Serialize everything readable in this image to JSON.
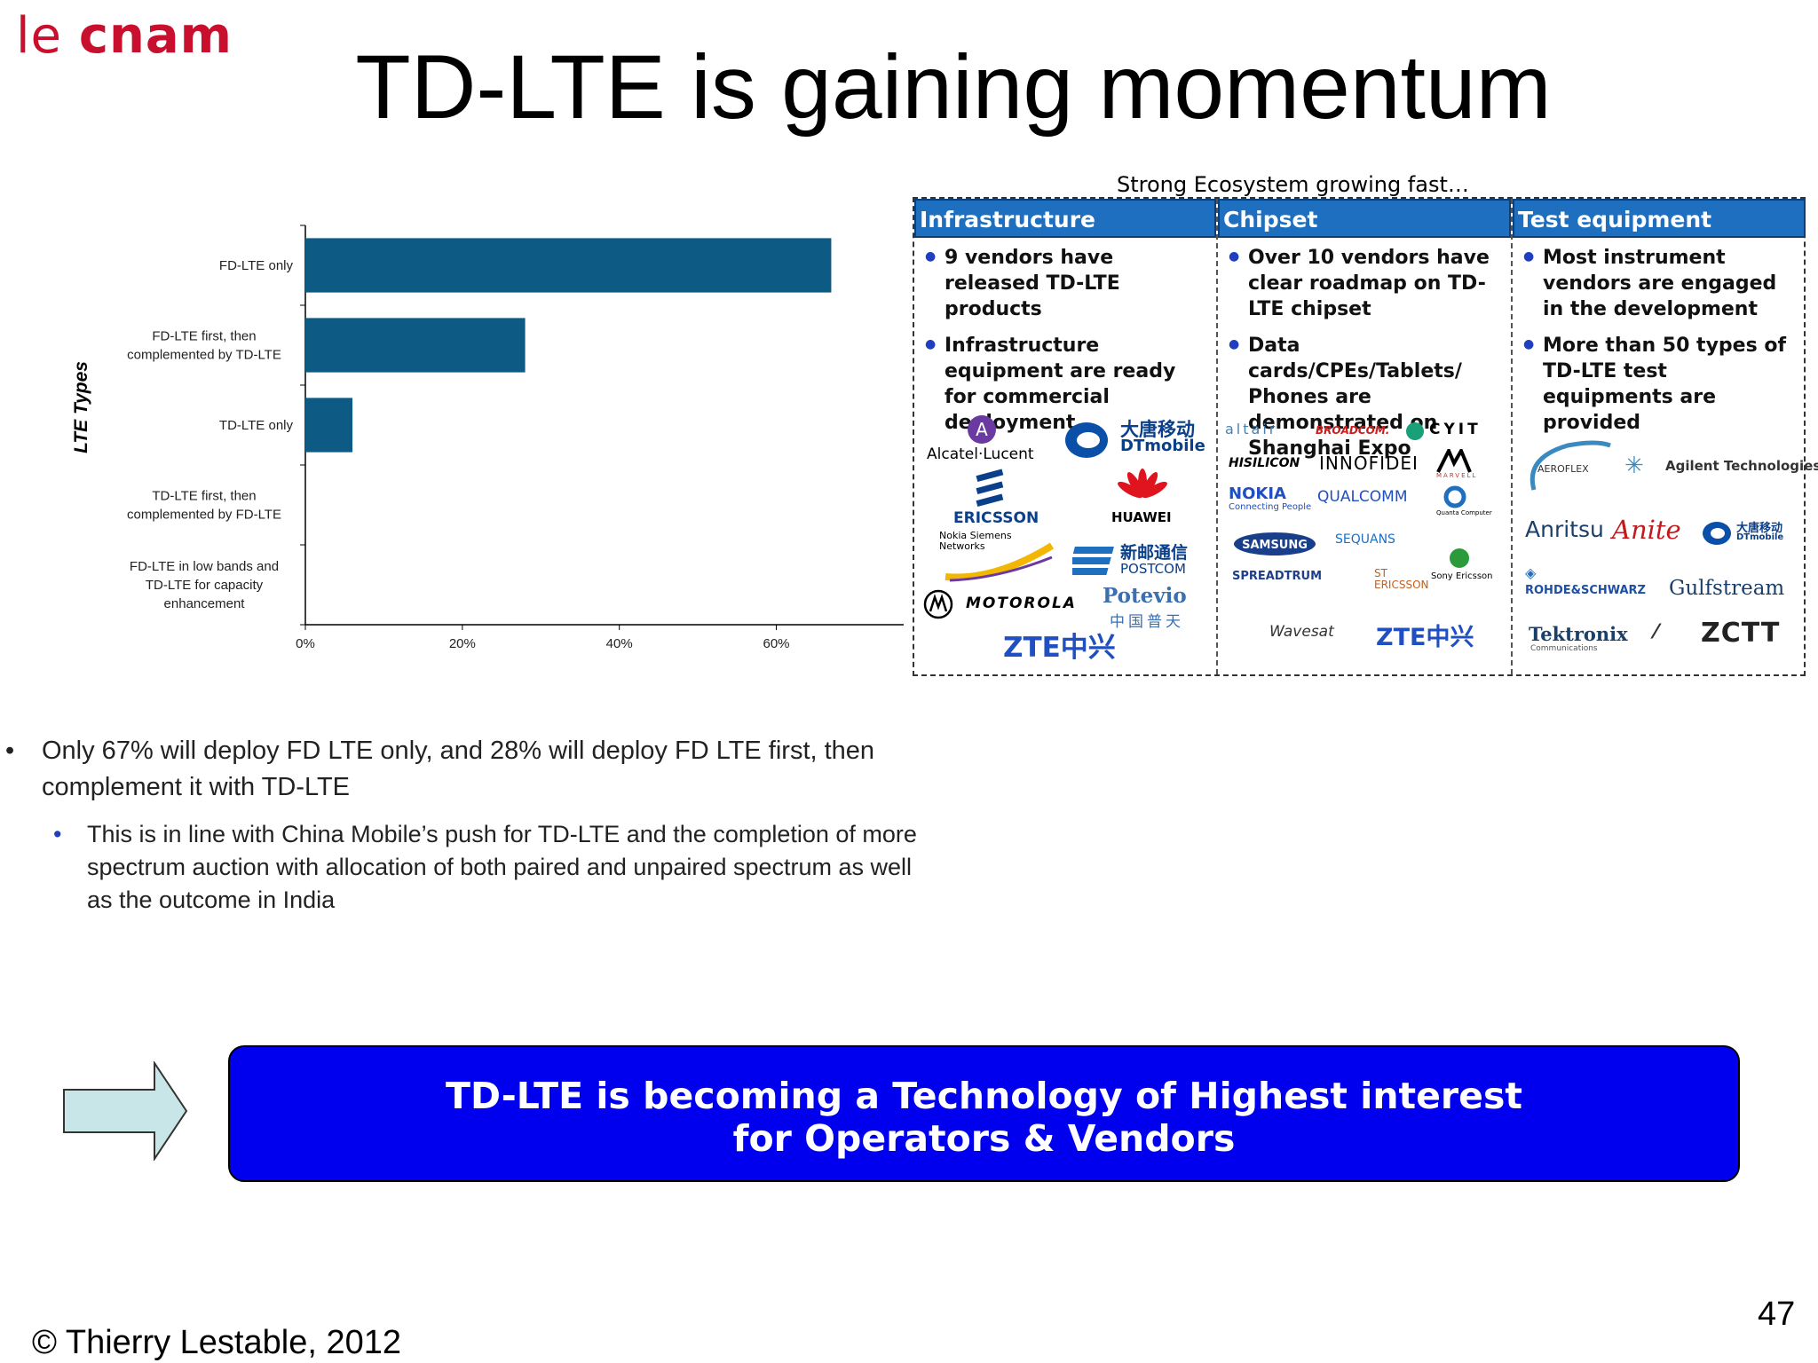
{
  "logo": {
    "prefix": "le ",
    "name": "cnam"
  },
  "title": "TD-LTE is gaining momentum",
  "chart_data": {
    "type": "bar",
    "orientation": "horizontal",
    "ylabel": "LTE Types",
    "categories": [
      "FD-LTE only",
      "FD-LTE first, then complemented by TD-LTE",
      "TD-LTE only",
      "TD-LTE first, then complemented by FD-LTE",
      "FD-LTE in low bands and TD-LTE for capacity enhancement"
    ],
    "category_lines": [
      [
        "FD-LTE only"
      ],
      [
        "FD-LTE first, then",
        "complemented by TD-LTE"
      ],
      [
        "TD-LTE only"
      ],
      [
        "TD-LTE first, then",
        "complemented by FD-LTE"
      ],
      [
        "FD-LTE in low bands and",
        "TD-LTE for capacity",
        "enhancement"
      ]
    ],
    "values": [
      67,
      28,
      6,
      0,
      0
    ],
    "xlim": [
      0,
      76
    ],
    "xticks": [
      "0%",
      "20%",
      "40%",
      "60%"
    ],
    "xtick_values": [
      0,
      20,
      40,
      60
    ],
    "bar_color": "#0d5a84",
    "grid": false
  },
  "ecosystem": {
    "caption": "Strong Ecosystem growing fast…",
    "header_color": "#1f6fc0",
    "columns": [
      {
        "title": "Infrastructure",
        "bullets": [
          "9 vendors have released TD-LTE products",
          "Infrastructure equipment are ready for commercial deployment"
        ],
        "vendors": [
          "Alcatel·Lucent",
          "大唐移动",
          "DTmobile",
          "ERICSSON",
          "HUAWEI",
          "Nokia Siemens Networks",
          "新邮通信",
          "POSTCOM",
          "MOTOROLA",
          "Potevio",
          "中国普天",
          "ZTE中兴"
        ]
      },
      {
        "title": "Chipset",
        "bullets": [
          "Over 10 vendors have clear roadmap on TD-LTE chipset",
          "Data cards/CPEs/Tablets/ Phones are demonstrated on Shanghai Expo"
        ],
        "vendors": [
          "altair",
          "BROADCOM.",
          "CYIT",
          "HISILICON",
          "INNOFIDEI",
          "MARVELL",
          "NOKIA",
          "Connecting People",
          "QUALCOMM",
          "Quanta Computer",
          "SAMSUNG",
          "SEQUANS",
          "SPREADTRUM",
          "ST ERICSSON",
          "Sony Ericsson",
          "Wavesat",
          "ZTE中兴"
        ]
      },
      {
        "title": "Test equipment",
        "bullets": [
          "Most instrument vendors are engaged in the development",
          "More than 50 types of TD-LTE test equipments are provided"
        ],
        "vendors": [
          "AEROFLEX",
          "Agilent Technologies",
          "Anritsu",
          "Anite",
          "大唐移动",
          "DTmobile",
          "ROHDE&SCHWARZ",
          "Gulfstream",
          "Tektronix",
          "Communications",
          "ZCTT"
        ]
      }
    ]
  },
  "bullet1": "Only 67% will deploy FD LTE only, and 28% will deploy FD LTE first, then complement it with TD-LTE",
  "bullet2": "This is in line with China Mobile’s push for TD-LTE and the completion of more spectrum auction with allocation of both paired and unpaired spectrum as well as the outcome in India",
  "banner": {
    "line1": "TD-LTE is becoming a Technology of Highest interest",
    "line2": "for Operators & Vendors",
    "color": "#0000ee"
  },
  "footer": "© Thierry Lestable, 2012",
  "page_number": "47"
}
